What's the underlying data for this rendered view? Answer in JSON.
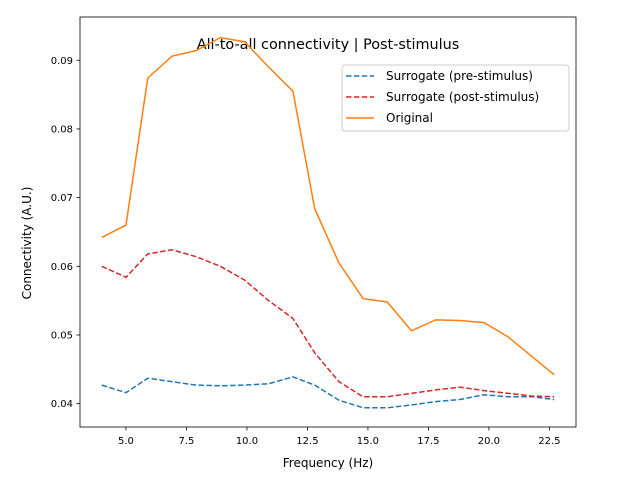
{
  "chart_data": {
    "type": "line",
    "title": "All-to-all connectivity | Post-stimulus",
    "xlabel": "Frequency (Hz)",
    "ylabel": "Connectivity (A.U.)",
    "xlim": [
      3.1,
      23.6
    ],
    "ylim": [
      0.0366,
      0.0963
    ],
    "xticks": [
      5.0,
      7.5,
      10.0,
      12.5,
      15.0,
      17.5,
      20.0,
      22.5
    ],
    "xtick_labels": [
      "5.0",
      "7.5",
      "10.0",
      "12.5",
      "15.0",
      "17.5",
      "20.0",
      "22.5"
    ],
    "yticks": [
      0.04,
      0.05,
      0.06,
      0.07,
      0.08,
      0.09
    ],
    "ytick_labels": [
      "0.04",
      "0.05",
      "0.06",
      "0.07",
      "0.08",
      "0.09"
    ],
    "grid": false,
    "legend_position": "top-right",
    "x": [
      4.0,
      5.0,
      5.9,
      6.9,
      7.9,
      8.9,
      9.9,
      10.9,
      11.9,
      12.8,
      13.8,
      14.8,
      15.8,
      16.8,
      17.8,
      18.8,
      19.8,
      20.8,
      21.8,
      22.7
    ],
    "series": [
      {
        "name": "Surrogate (pre-stimulus)",
        "color": "#1f77b4",
        "dash": true,
        "values": [
          0.0427,
          0.0416,
          0.0437,
          0.0432,
          0.0427,
          0.0426,
          0.0427,
          0.0429,
          0.0439,
          0.0427,
          0.0405,
          0.0394,
          0.0394,
          0.0398,
          0.0403,
          0.0406,
          0.0413,
          0.041,
          0.041,
          0.0406
        ]
      },
      {
        "name": "Surrogate (post-stimulus)",
        "color": "#d62728",
        "dash": true,
        "values": [
          0.06,
          0.0584,
          0.0618,
          0.0624,
          0.0614,
          0.06,
          0.058,
          0.055,
          0.0524,
          0.0474,
          0.0432,
          0.041,
          0.041,
          0.0415,
          0.042,
          0.0424,
          0.0419,
          0.0415,
          0.0411,
          0.041
        ]
      },
      {
        "name": "Original",
        "color": "#ff7f0e",
        "dash": false,
        "values": [
          0.0642,
          0.066,
          0.0874,
          0.0906,
          0.0914,
          0.0933,
          0.0927,
          0.089,
          0.0855,
          0.0684,
          0.0605,
          0.0553,
          0.0548,
          0.0506,
          0.0522,
          0.0521,
          0.0518,
          0.0497,
          0.0468,
          0.0442
        ]
      }
    ]
  }
}
